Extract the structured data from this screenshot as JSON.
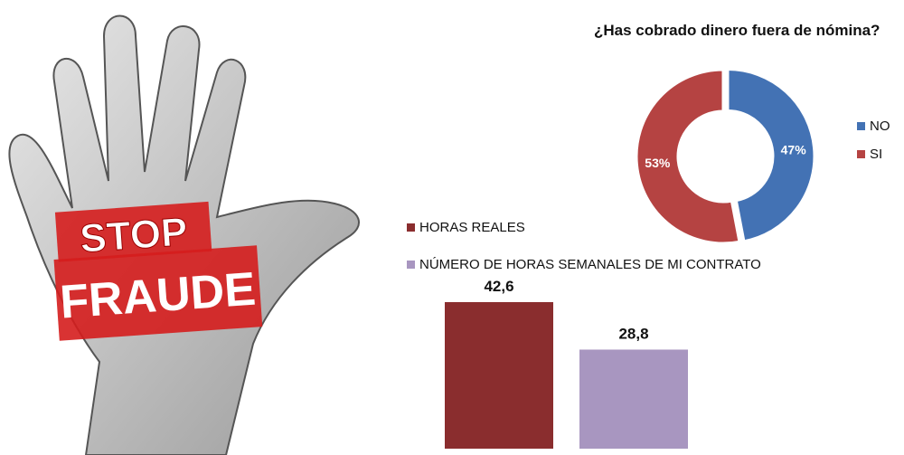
{
  "stamp": {
    "line1": "STOP",
    "line2": "FRAUDE"
  },
  "chart_data": [
    {
      "type": "pie",
      "variant": "donut",
      "title": "¿Has cobrado dinero fuera de nómina?",
      "legend_position": "right",
      "slices": [
        {
          "name": "NO",
          "value": 47,
          "label": "47%",
          "color": "#4372b4"
        },
        {
          "name": "SI",
          "value": 53,
          "label": "53%",
          "color": "#b54342"
        }
      ]
    },
    {
      "type": "bar",
      "legend_position": "top",
      "grid": false,
      "ylim": [
        0,
        42.6
      ],
      "series": [
        {
          "name": "HORAS REALES",
          "value": 42.6,
          "label": "42,6",
          "color": "#8a2d2e"
        },
        {
          "name": "NÚMERO DE HORAS SEMANALES DE MI CONTRATO",
          "value": 28.8,
          "label": "28,8",
          "color": "#a896c0"
        }
      ]
    }
  ]
}
